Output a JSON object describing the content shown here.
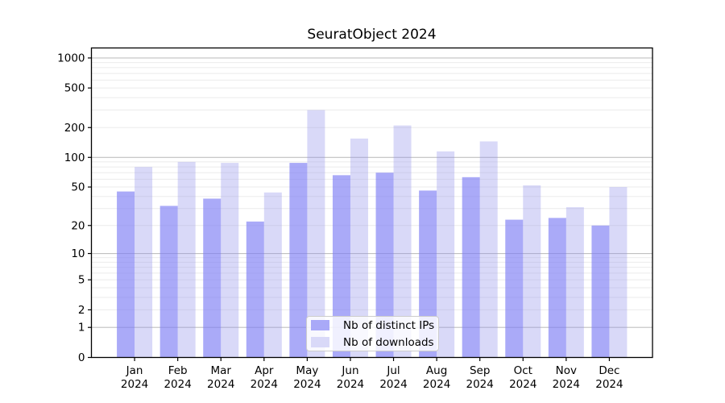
{
  "chart_data": {
    "type": "bar",
    "title": "SeuratObject 2024",
    "categories": [
      "Jan",
      "Feb",
      "Mar",
      "Apr",
      "May",
      "Jun",
      "Jul",
      "Aug",
      "Sep",
      "Oct",
      "Nov",
      "Dec"
    ],
    "category_year": "2024",
    "series": [
      {
        "name": "Nb of distinct IPs",
        "swatch_color": "#a9a9f8",
        "bar_fill": "rgba(124,124,244,0.65)",
        "values": [
          45,
          32,
          38,
          22,
          88,
          66,
          70,
          46,
          63,
          23,
          24,
          20
        ]
      },
      {
        "name": "Nb of downloads",
        "swatch_color": "#d9d9f8",
        "bar_fill": "rgba(146,146,235,0.35)",
        "values": [
          80,
          90,
          88,
          44,
          300,
          155,
          210,
          115,
          145,
          52,
          31,
          50
        ]
      }
    ],
    "y_scale": "log1p",
    "y_ticks": [
      0,
      1,
      2,
      5,
      10,
      20,
      50,
      100,
      200,
      500,
      1000
    ],
    "ylim": [
      0,
      1260
    ],
    "grid": {
      "major_color": "#c0c0c0",
      "minor_color": "#ebebeb"
    },
    "axis_color": "#000000",
    "legend_position": "lower center"
  }
}
